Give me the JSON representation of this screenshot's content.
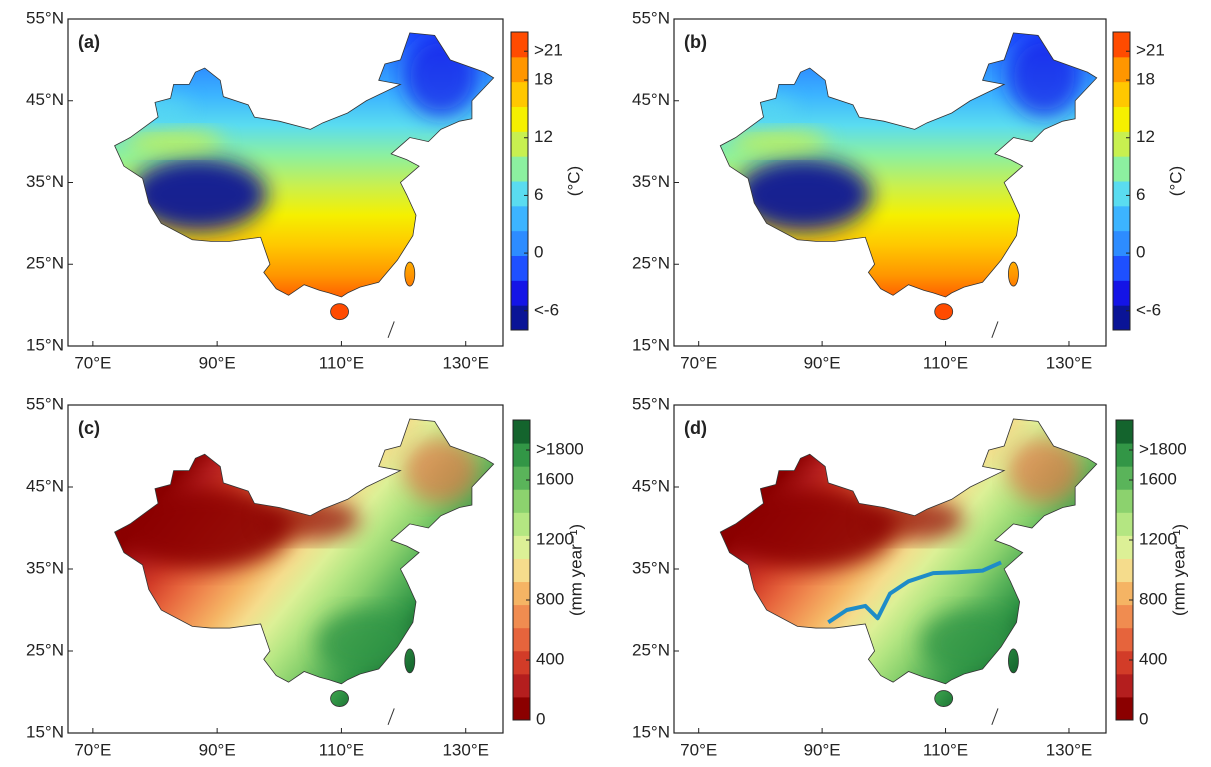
{
  "panels": [
    {
      "label": "(a)",
      "xlim": [
        66,
        136
      ],
      "ylim": [
        15,
        55
      ],
      "xticks": [
        {
          "value": 70,
          "label": "70°E"
        },
        {
          "value": 90,
          "label": "90°E"
        },
        {
          "value": 110,
          "label": "110°E"
        },
        {
          "value": 130,
          "label": "130°E"
        }
      ],
      "yticks": [
        {
          "value": 15,
          "label": "15°N"
        },
        {
          "value": 25,
          "label": "25°N"
        },
        {
          "value": 35,
          "label": "35°N"
        },
        {
          "value": 45,
          "label": "45°N"
        },
        {
          "value": 55,
          "label": "55°N"
        }
      ],
      "colorbar": {
        "title": "(°C)",
        "lim": [
          -8,
          23
        ],
        "ticks": [
          {
            "value": -6,
            "label": "<-6"
          },
          0,
          6,
          12,
          18,
          {
            "value": 21,
            "label": ">21"
          }
        ],
        "colors": [
          "#0a1496",
          "#1414e6",
          "#1e50ff",
          "#2d8cff",
          "#3cb4ff",
          "#5adcf0",
          "#8cf0a0",
          "#c8f050",
          "#f5f000",
          "#ffc800",
          "#ff9600",
          "#ff4b00"
        ]
      }
    },
    {
      "label": "(b)",
      "xlim": [
        66,
        136
      ],
      "ylim": [
        15,
        55
      ],
      "xticks": [
        {
          "value": 70,
          "label": "70°E"
        },
        {
          "value": 90,
          "label": "90°E"
        },
        {
          "value": 110,
          "label": "110°E"
        },
        {
          "value": 130,
          "label": "130°E"
        }
      ],
      "yticks": [
        {
          "value": 15,
          "label": "15°N"
        },
        {
          "value": 25,
          "label": "25°N"
        },
        {
          "value": 35,
          "label": "35°N"
        },
        {
          "value": 45,
          "label": "45°N"
        },
        {
          "value": 55,
          "label": "55°N"
        }
      ],
      "colorbar": {
        "title": "(°C)",
        "lim": [
          -8,
          23
        ],
        "ticks": [
          {
            "value": -6,
            "label": "<-6"
          },
          0,
          6,
          12,
          18,
          {
            "value": 21,
            "label": ">21"
          }
        ],
        "colors": [
          "#0a1496",
          "#1414e6",
          "#1e50ff",
          "#2d8cff",
          "#3cb4ff",
          "#5adcf0",
          "#8cf0a0",
          "#c8f050",
          "#f5f000",
          "#ffc800",
          "#ff9600",
          "#ff4b00"
        ]
      }
    },
    {
      "label": "(c)",
      "xlim": [
        66,
        136
      ],
      "ylim": [
        15,
        55
      ],
      "xticks": [
        {
          "value": 70,
          "label": "70°E"
        },
        {
          "value": 90,
          "label": "90°E"
        },
        {
          "value": 110,
          "label": "110°E"
        },
        {
          "value": 130,
          "label": "130°E"
        }
      ],
      "yticks": [
        {
          "value": 15,
          "label": "15°N"
        },
        {
          "value": 25,
          "label": "25°N"
        },
        {
          "value": 35,
          "label": "35°N"
        },
        {
          "value": 45,
          "label": "45°N"
        },
        {
          "value": 55,
          "label": "55°N"
        }
      ],
      "colorbar": {
        "title": "(mm year⁻¹)",
        "lim": [
          0,
          2000
        ],
        "ticks": [
          0,
          400,
          800,
          1200,
          1600,
          {
            "value": 1800,
            "label": ">1800"
          }
        ],
        "colors": [
          "#8b0000",
          "#b41e1e",
          "#d23c28",
          "#e6643c",
          "#f08c50",
          "#f5b464",
          "#f5dc8c",
          "#dcf096",
          "#b4e682",
          "#8cd26e",
          "#5ab45a",
          "#329646",
          "#14642d"
        ]
      }
    },
    {
      "label": "(d)",
      "xlim": [
        66,
        136
      ],
      "ylim": [
        15,
        55
      ],
      "xticks": [
        {
          "value": 70,
          "label": "70°E"
        },
        {
          "value": 90,
          "label": "90°E"
        },
        {
          "value": 110,
          "label": "110°E"
        },
        {
          "value": 130,
          "label": "130°E"
        }
      ],
      "yticks": [
        {
          "value": 15,
          "label": "15°N"
        },
        {
          "value": 25,
          "label": "25°N"
        },
        {
          "value": 35,
          "label": "35°N"
        },
        {
          "value": 45,
          "label": "45°N"
        },
        {
          "value": 55,
          "label": "55°N"
        }
      ],
      "colorbar": {
        "title": "(mm year⁻¹)",
        "lim": [
          0,
          2000
        ],
        "ticks": [
          0,
          400,
          800,
          1200,
          1600,
          {
            "value": 1800,
            "label": ">1800"
          }
        ],
        "colors": [
          "#8b0000",
          "#b41e1e",
          "#d23c28",
          "#e6643c",
          "#f08c50",
          "#f5b464",
          "#f5dc8c",
          "#dcf096",
          "#b4e682",
          "#8cd26e",
          "#5ab45a",
          "#329646",
          "#14642d"
        ]
      }
    }
  ]
}
